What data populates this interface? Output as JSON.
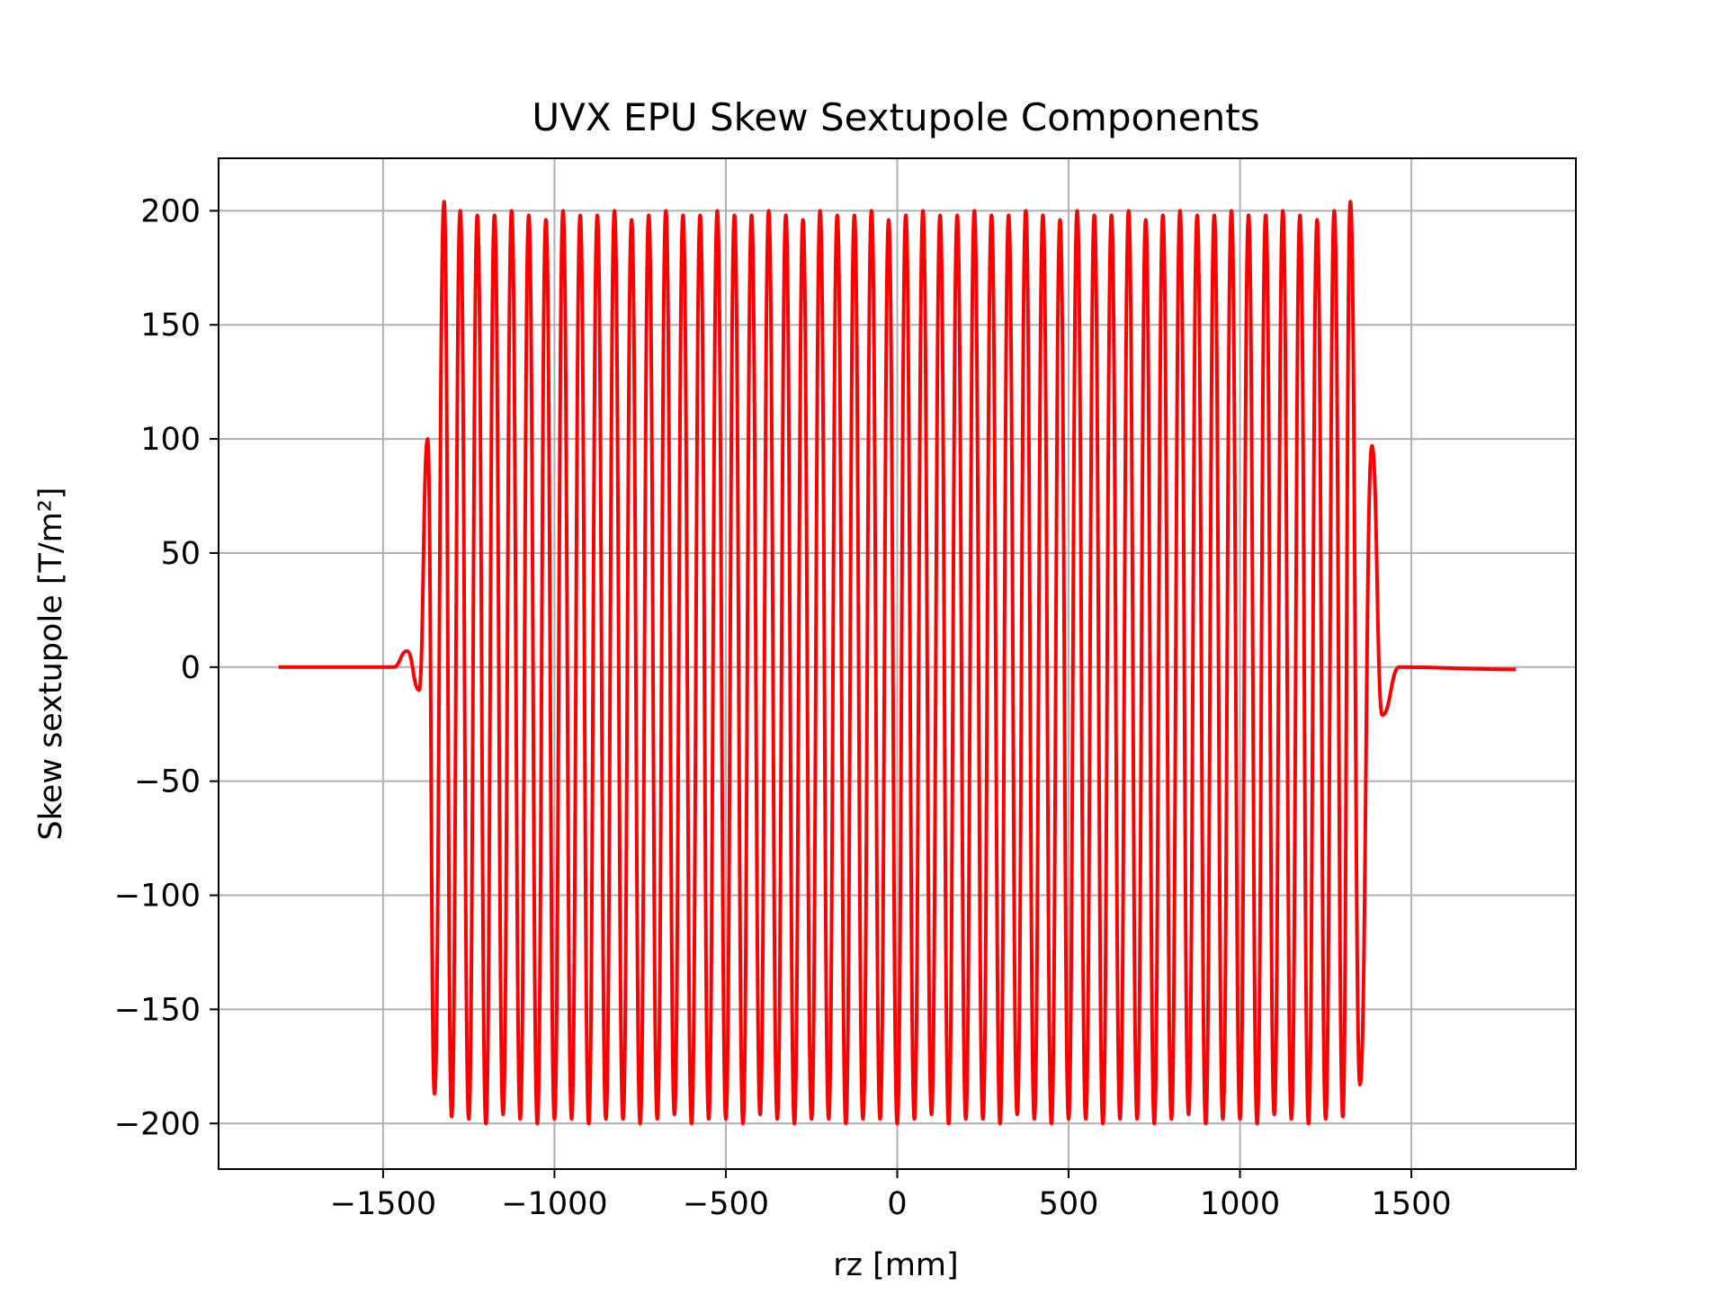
{
  "chart_data": {
    "type": "line",
    "title": "UVX EPU Skew Sextupole Components",
    "xlabel": "rz [mm]",
    "ylabel": "Skew sextupole [T/m²]",
    "xlim": [
      -1980,
      1980
    ],
    "ylim": [
      -220,
      223
    ],
    "xticks": [
      -1500,
      -1000,
      -500,
      0,
      500,
      1000,
      1500
    ],
    "xtick_labels": [
      "−1500",
      "−1000",
      "−500",
      "0",
      "500",
      "1000",
      "1500"
    ],
    "yticks": [
      -200,
      -150,
      -100,
      -50,
      0,
      50,
      100,
      150,
      200
    ],
    "ytick_labels": [
      "−200",
      "−150",
      "−100",
      "−50",
      "0",
      "50",
      "100",
      "150",
      "200"
    ],
    "grid": true,
    "series": [
      {
        "color": "#ff0000",
        "x_range": [
          -1805,
          1805
        ],
        "core_start": -1335,
        "core_end": 1335,
        "period_mm": 50,
        "amplitude": 198,
        "points": [
          {
            "x": -1805,
            "y": 0
          },
          {
            "x": -1470,
            "y": 0
          },
          {
            "x": -1430,
            "y": 7
          },
          {
            "x": -1395,
            "y": -10
          },
          {
            "x": -1370,
            "y": 100
          },
          {
            "x": -1350,
            "y": -187
          },
          {
            "x": -1322,
            "y": 204
          },
          {
            "x": -1300,
            "y": -197
          },
          {
            "x": 1300,
            "y": -197
          },
          {
            "x": 1322,
            "y": 204
          },
          {
            "x": 1350,
            "y": -183
          },
          {
            "x": 1385,
            "y": 97
          },
          {
            "x": 1415,
            "y": -21
          },
          {
            "x": 1465,
            "y": 0
          },
          {
            "x": 1805,
            "y": -1
          }
        ]
      }
    ]
  }
}
